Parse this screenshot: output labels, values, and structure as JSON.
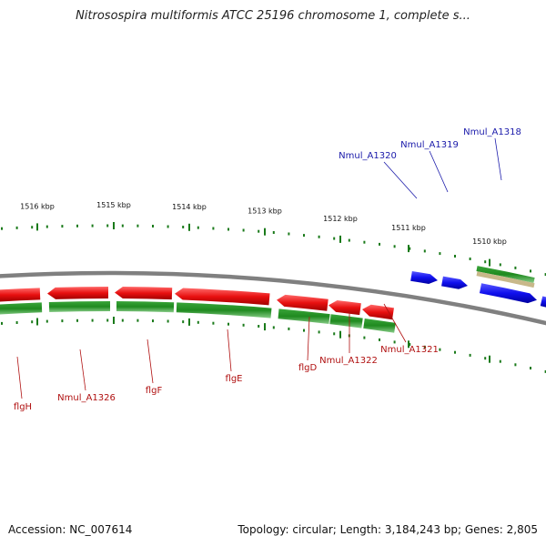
{
  "header": {
    "title": "Nitrosospira multiformis ATCC 25196 chromosome 1, complete s..."
  },
  "footer": {
    "accession": "Accession: NC_007614",
    "summary": "Topology: circular; Length: 3,184,243 bp; Genes: 2,805"
  },
  "colors": {
    "forward_gene": "#1010ee",
    "reverse_gene": "#ee1010",
    "cds_track": "#228b22",
    "rna_track": "#c8b88a",
    "backbone": "#808080",
    "tick": "#1a7a1a",
    "forward_label": "#1a1aaa",
    "reverse_label": "#b01010"
  },
  "ruler": {
    "ticks": [
      {
        "label": "1510 kbp"
      },
      {
        "label": "1511 kbp"
      },
      {
        "label": "1512 kbp"
      },
      {
        "label": "1513 kbp"
      },
      {
        "label": "1514 kbp"
      },
      {
        "label": "1515 kbp"
      },
      {
        "label": "1516 kbp"
      }
    ]
  },
  "genes": {
    "forward": [
      {
        "name": "Nmul_A1318",
        "strand": "+"
      },
      {
        "name": "Nmul_A1319",
        "strand": "+"
      },
      {
        "name": "Nmul_A1320",
        "strand": "+"
      }
    ],
    "reverse": [
      {
        "name": "Nmul_A1321",
        "strand": "-"
      },
      {
        "name": "Nmul_A1322",
        "strand": "-"
      },
      {
        "name": "flgD",
        "strand": "-"
      },
      {
        "name": "flgE",
        "strand": "-"
      },
      {
        "name": "flgF",
        "strand": "-"
      },
      {
        "name": "Nmul_A1326",
        "strand": "-"
      },
      {
        "name": "flgH",
        "strand": "-"
      }
    ]
  }
}
